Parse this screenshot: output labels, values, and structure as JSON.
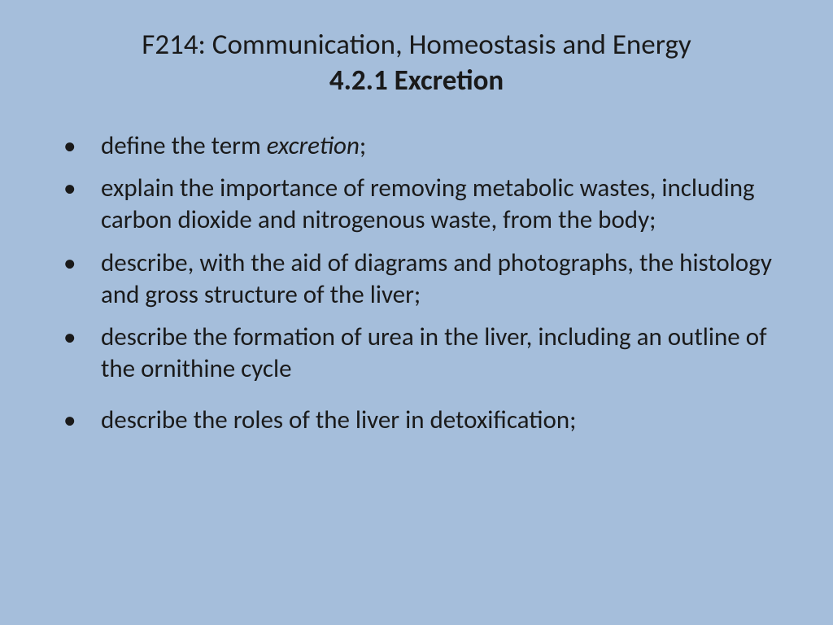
{
  "styling": {
    "background_color": "#a5bedb",
    "text_color": "#1a1a1a",
    "font_family": "Calibri",
    "title_fontsize": 35,
    "title_line1_weight": 400,
    "title_line2_weight": 700,
    "body_fontsize": 31,
    "bullet_char": "•",
    "bullet_color": "#1a1a1a",
    "line_height": 1.25,
    "slide_width": 1024,
    "slide_height": 768
  },
  "title": {
    "line1": "F214: Communication, Homeostasis and Energy",
    "line2": "4.2.1 Excretion"
  },
  "bullets": [
    {
      "pre": "define the term ",
      "italic": "excretion",
      "post": ";"
    },
    {
      "pre": "explain the importance of removing metabolic wastes, including carbon dioxide and nitrogenous waste, from the body;",
      "italic": "",
      "post": ""
    },
    {
      "pre": "describe, with the aid of diagrams and photographs, the histology and gross structure of the liver;",
      "italic": "",
      "post": ""
    },
    {
      "pre": "describe the formation of urea in the liver, including an outline of the ornithine cycle",
      "italic": "",
      "post": ""
    },
    {
      "pre": "describe the roles of the liver in detoxification;",
      "italic": "",
      "post": ""
    }
  ]
}
